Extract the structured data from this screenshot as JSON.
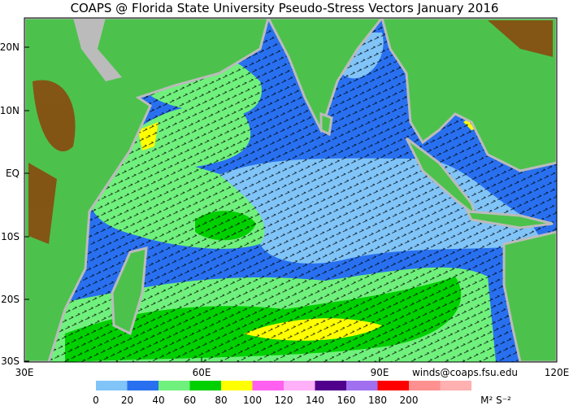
{
  "title": "COAPS @ Florida State University Pseudo-Stress Vectors January 2016",
  "lat_labels": [
    "20N",
    "10N",
    "EQ",
    "10S",
    "20S",
    "30S"
  ],
  "lon_labels": [
    "30E",
    "60E",
    "90E",
    "120E"
  ],
  "credit": "winds@coaps.fsu.edu",
  "colorbar": {
    "ticks": [
      0,
      20,
      40,
      60,
      80,
      100,
      120,
      140,
      160,
      180,
      200
    ],
    "colors": [
      "#80c4f8",
      "#2870f0",
      "#70f07c",
      "#00d000",
      "#ffff00",
      "#ff60f0",
      "#ffb0f8",
      "#50008c",
      "#a070f0",
      "#ff0000",
      "#ff9090"
    ],
    "unit": "M² S⁻²"
  }
}
